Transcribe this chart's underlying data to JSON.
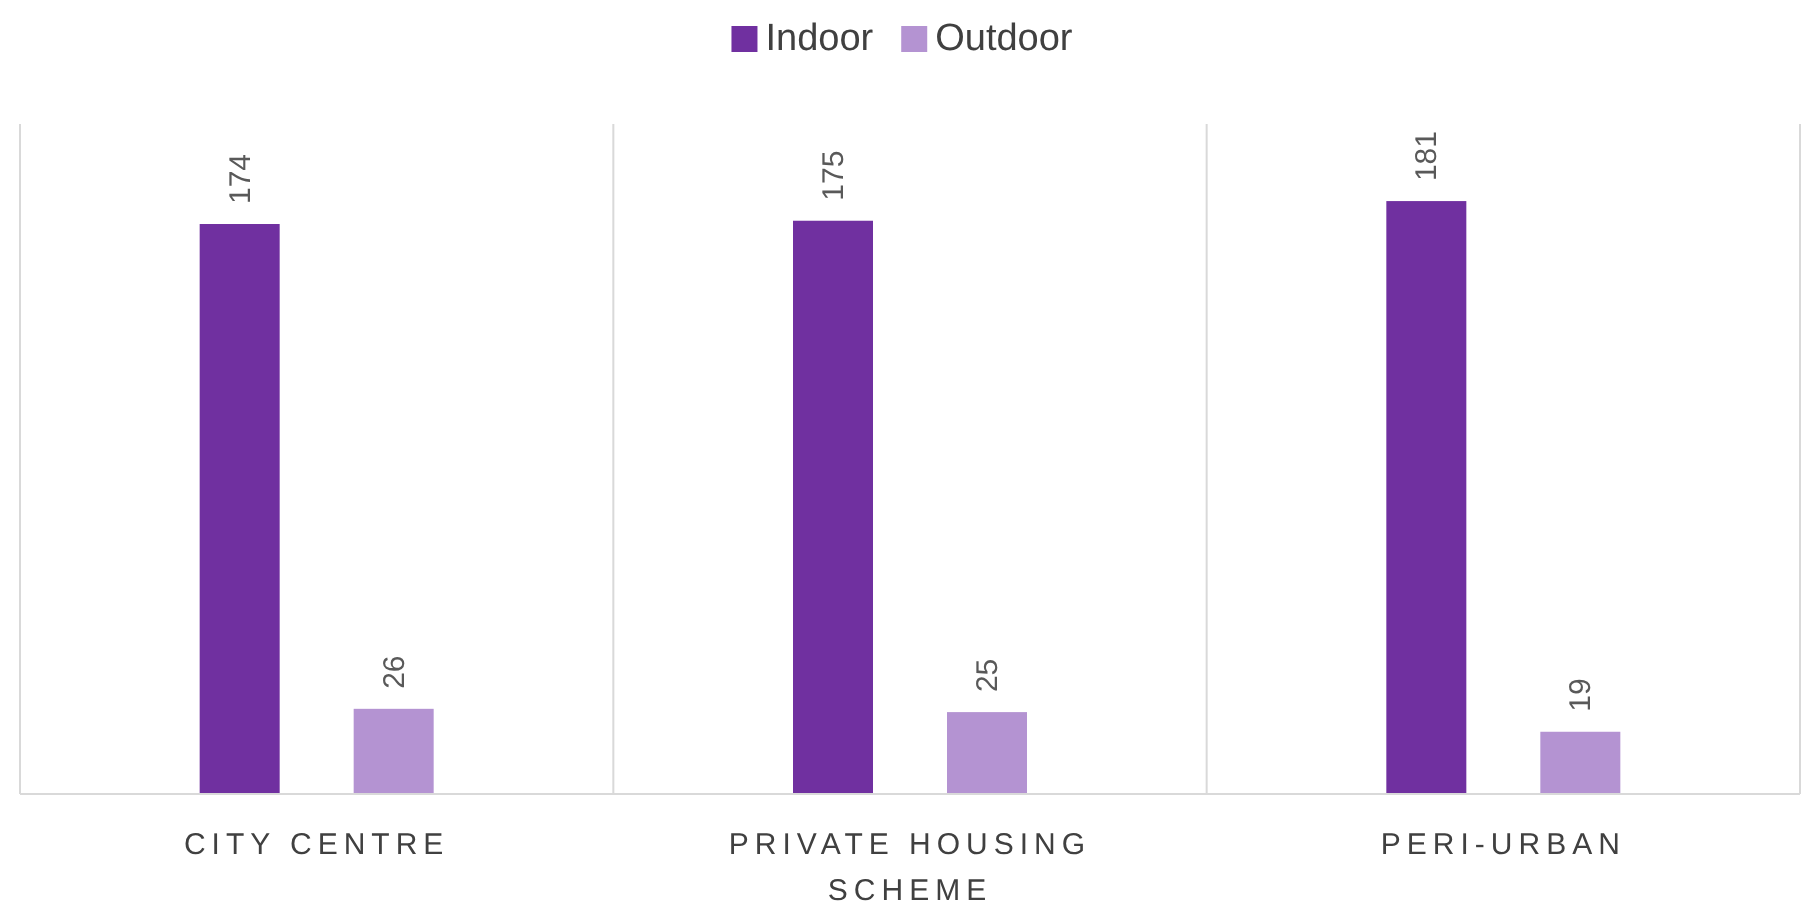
{
  "chart_data": {
    "type": "bar",
    "categories": [
      "CITY CENTRE",
      "PRIVATE HOUSING SCHEME",
      "PERI-URBAN"
    ],
    "series": [
      {
        "name": "Indoor",
        "color": "#7030a0",
        "values": [
          174,
          175,
          181
        ]
      },
      {
        "name": "Outdoor",
        "color": "#b493d2",
        "values": [
          26,
          25,
          19
        ]
      }
    ],
    "data_labels": true,
    "grid": "x",
    "legend": "top"
  }
}
